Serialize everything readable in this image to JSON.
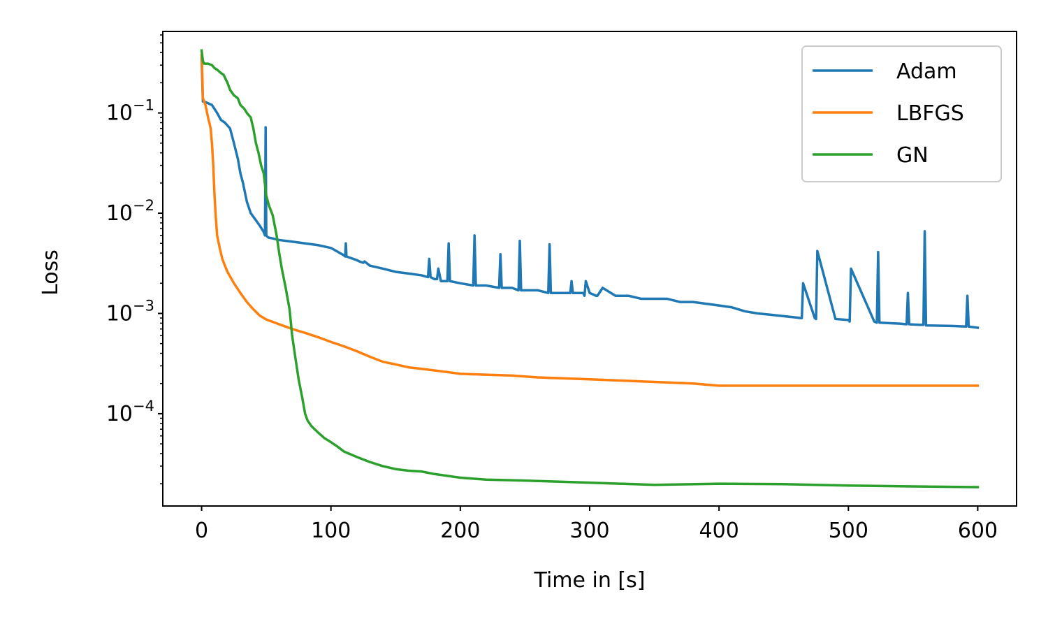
{
  "chart_data": {
    "type": "line",
    "title": "",
    "xlabel": "Time in [s]",
    "ylabel": "Loss",
    "xlim": [
      -30,
      630
    ],
    "ylim": [
      1.2e-05,
      0.65
    ],
    "yscale": "log",
    "xticks": [
      0,
      100,
      200,
      300,
      400,
      500,
      600
    ],
    "xtick_labels": [
      "0",
      "100",
      "200",
      "300",
      "400",
      "500",
      "600"
    ],
    "yticks": [
      {
        "value": 0.1,
        "base": "10",
        "exp": "−1"
      },
      {
        "value": 0.01,
        "base": "10",
        "exp": "−2"
      },
      {
        "value": 0.001,
        "base": "10",
        "exp": "−3"
      },
      {
        "value": 0.0001,
        "base": "10",
        "exp": "−4"
      }
    ],
    "grid": false,
    "legend_position": "top-right",
    "series": [
      {
        "name": "Adam",
        "color": "#1f77b4",
        "x": [
          0,
          1,
          2,
          8,
          12,
          15,
          18,
          22,
          25,
          28,
          30,
          32,
          35,
          38,
          42,
          45,
          48,
          49,
          49.5,
          50,
          51,
          52,
          55,
          60,
          70,
          80,
          90,
          100,
          110,
          111,
          111.5,
          112,
          120,
          122,
          125,
          126,
          130,
          135,
          140,
          150,
          160,
          170,
          175,
          176,
          177,
          180,
          182,
          183,
          185,
          190,
          191,
          192,
          200,
          210,
          211,
          212,
          220,
          230,
          231,
          232,
          240,
          245,
          246,
          247,
          260,
          268,
          269,
          270,
          280,
          285,
          286,
          287,
          295,
          296,
          297,
          300,
          305,
          306,
          310,
          320,
          330,
          340,
          350,
          360,
          370,
          380,
          390,
          400,
          410,
          420,
          430,
          440,
          450,
          460,
          463,
          464,
          465,
          474,
          475,
          476,
          490,
          500,
          501,
          502,
          520,
          522,
          523,
          524,
          540,
          545,
          546,
          547,
          555,
          558,
          559,
          560,
          580,
          591,
          592,
          593,
          600
        ],
        "y": [
          0.35,
          0.13,
          0.13,
          0.12,
          0.1,
          0.085,
          0.08,
          0.07,
          0.05,
          0.035,
          0.025,
          0.02,
          0.013,
          0.01,
          0.0085,
          0.0075,
          0.0065,
          0.006,
          0.072,
          0.006,
          0.0058,
          0.0057,
          0.0056,
          0.0054,
          0.0052,
          0.005,
          0.0048,
          0.0045,
          0.0038,
          0.0037,
          0.005,
          0.0037,
          0.0034,
          0.0033,
          0.0032,
          0.0033,
          0.003,
          0.0029,
          0.0028,
          0.0026,
          0.0025,
          0.0024,
          0.0023,
          0.0035,
          0.0023,
          0.0022,
          0.0022,
          0.0028,
          0.0021,
          0.0021,
          0.005,
          0.0021,
          0.002,
          0.0019,
          0.006,
          0.0019,
          0.0019,
          0.0018,
          0.0039,
          0.0018,
          0.0018,
          0.0017,
          0.0053,
          0.0017,
          0.0017,
          0.0016,
          0.0049,
          0.0016,
          0.0016,
          0.0016,
          0.0021,
          0.0016,
          0.0016,
          0.0015,
          0.0021,
          0.0016,
          0.0015,
          0.0015,
          0.0018,
          0.0015,
          0.0015,
          0.0014,
          0.0014,
          0.0014,
          0.0013,
          0.0013,
          0.00125,
          0.0012,
          0.00115,
          0.00105,
          0.001,
          0.00097,
          0.00094,
          0.00091,
          0.0009,
          0.0009,
          0.002,
          0.0009,
          0.00088,
          0.0042,
          0.00088,
          0.00086,
          0.00083,
          0.0028,
          0.00083,
          0.00081,
          0.0041,
          0.00081,
          0.00079,
          0.00078,
          0.0016,
          0.00078,
          0.00077,
          0.00077,
          0.0066,
          0.00076,
          0.00075,
          0.00074,
          0.0015,
          0.00074,
          0.00072
        ]
      },
      {
        "name": "LBFGS",
        "color": "#ff7f0e",
        "x": [
          0,
          0.5,
          1,
          2,
          3,
          5,
          6,
          7,
          8,
          9,
          10,
          11,
          12,
          14,
          16,
          18,
          20,
          25,
          30,
          35,
          40,
          45,
          50,
          60,
          70,
          80,
          90,
          100,
          110,
          120,
          130,
          140,
          150,
          160,
          170,
          180,
          190,
          200,
          220,
          240,
          260,
          280,
          300,
          320,
          340,
          360,
          380,
          390,
          400,
          450,
          500,
          550,
          600
        ],
        "y": [
          0.38,
          0.25,
          0.14,
          0.13,
          0.12,
          0.09,
          0.08,
          0.07,
          0.05,
          0.03,
          0.015,
          0.009,
          0.006,
          0.0045,
          0.0035,
          0.003,
          0.0026,
          0.002,
          0.0016,
          0.0013,
          0.0011,
          0.00095,
          0.00087,
          0.00078,
          0.0007,
          0.00064,
          0.00058,
          0.00052,
          0.00047,
          0.00042,
          0.00037,
          0.00033,
          0.00031,
          0.00029,
          0.00028,
          0.00027,
          0.00026,
          0.00025,
          0.000245,
          0.00024,
          0.00023,
          0.000225,
          0.00022,
          0.000215,
          0.00021,
          0.000205,
          0.0002,
          0.000195,
          0.00019,
          0.00019,
          0.00019,
          0.00019,
          0.00019
        ]
      },
      {
        "name": "GN",
        "color": "#2ca02c",
        "x": [
          0,
          1,
          2,
          5,
          8,
          10,
          12,
          15,
          17,
          20,
          22,
          25,
          28,
          30,
          33,
          35,
          38,
          40,
          42,
          44,
          46,
          48,
          50,
          52,
          55,
          58,
          60,
          62,
          65,
          68,
          70,
          72,
          75,
          78,
          80,
          82,
          85,
          90,
          95,
          100,
          105,
          110,
          120,
          130,
          140,
          150,
          160,
          170,
          180,
          200,
          220,
          250,
          300,
          350,
          400,
          450,
          500,
          550,
          600
        ],
        "y": [
          0.42,
          0.33,
          0.31,
          0.31,
          0.3,
          0.28,
          0.27,
          0.25,
          0.24,
          0.2,
          0.17,
          0.15,
          0.14,
          0.12,
          0.11,
          0.1,
          0.09,
          0.07,
          0.05,
          0.04,
          0.03,
          0.025,
          0.015,
          0.012,
          0.0095,
          0.006,
          0.004,
          0.0028,
          0.0018,
          0.0011,
          0.0006,
          0.0004,
          0.00022,
          0.00014,
          0.0001,
          8.5e-05,
          7.5e-05,
          6.5e-05,
          5.7e-05,
          5.2e-05,
          4.7e-05,
          4.2e-05,
          3.7e-05,
          3.3e-05,
          3e-05,
          2.8e-05,
          2.7e-05,
          2.65e-05,
          2.5e-05,
          2.3e-05,
          2.2e-05,
          2.15e-05,
          2.05e-05,
          1.95e-05,
          2e-05,
          1.98e-05,
          1.92e-05,
          1.88e-05,
          1.85e-05
        ]
      }
    ]
  }
}
